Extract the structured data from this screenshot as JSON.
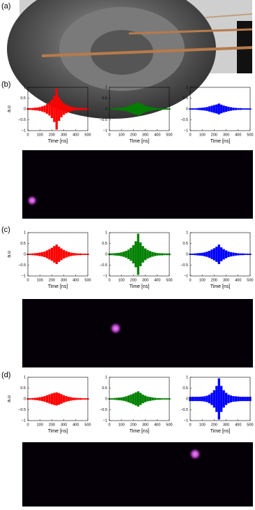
{
  "panels": [
    "(a)",
    "(b)",
    "(c)",
    "(d)"
  ],
  "chart_data": [
    {
      "type": "area",
      "color": "#ff0000",
      "xlabel": "Time [ns]",
      "ylabel": "a.u",
      "xlim": [
        0,
        500
      ],
      "xticks": [
        0,
        100,
        200,
        300,
        400,
        500
      ],
      "ylim": [
        -1,
        1
      ],
      "yticks": [
        {
          "value": -1,
          "label": "−1"
        },
        {
          "value": -0.5,
          "label": "−0.5"
        },
        0,
        0.5,
        1
      ],
      "x": [
        0,
        20,
        40,
        60,
        80,
        100,
        120,
        140,
        160,
        180,
        200,
        220,
        240,
        260,
        280,
        300,
        320,
        340,
        360,
        380,
        400,
        420,
        440,
        460,
        480,
        500
      ],
      "values": [
        0.04,
        0.04,
        0.05,
        0.06,
        0.07,
        0.09,
        0.12,
        0.16,
        0.22,
        0.3,
        0.42,
        0.6,
        0.95,
        0.55,
        0.38,
        0.27,
        0.2,
        0.15,
        0.11,
        0.08,
        0.06,
        0.05,
        0.05,
        0.04,
        0.04,
        0.04
      ]
    },
    {
      "type": "area",
      "color": "#008000",
      "xlabel": "Time [ns]",
      "xlim": [
        0,
        500
      ],
      "xticks": [
        0,
        100,
        200,
        300,
        400,
        500
      ],
      "ylim": [
        -1,
        1
      ],
      "yticks": [
        {
          "value": -1,
          "label": "−1"
        },
        {
          "value": -0.5,
          "label": "−0.5"
        },
        0,
        0.5,
        1
      ],
      "x": [
        0,
        20,
        40,
        60,
        80,
        100,
        120,
        140,
        160,
        180,
        200,
        220,
        240,
        260,
        280,
        300,
        320,
        340,
        360,
        380,
        400,
        420,
        440,
        460,
        480,
        500
      ],
      "values": [
        0.03,
        0.03,
        0.03,
        0.04,
        0.05,
        0.06,
        0.08,
        0.1,
        0.14,
        0.18,
        0.22,
        0.26,
        0.3,
        0.26,
        0.2,
        0.15,
        0.12,
        0.09,
        0.07,
        0.05,
        0.04,
        0.04,
        0.03,
        0.03,
        0.03,
        0.03
      ]
    },
    {
      "type": "area",
      "color": "#0000ff",
      "xlabel": "Time [ns]",
      "xlim": [
        0,
        500
      ],
      "xticks": [
        0,
        100,
        200,
        300,
        400,
        500
      ],
      "ylim": [
        -1,
        1
      ],
      "yticks": [
        {
          "value": -1,
          "label": "−1"
        },
        {
          "value": -0.5,
          "label": "−0.5"
        },
        0,
        0.5,
        1
      ],
      "x": [
        0,
        20,
        40,
        60,
        80,
        100,
        120,
        140,
        160,
        180,
        200,
        220,
        240,
        260,
        280,
        300,
        320,
        340,
        360,
        380,
        400,
        420,
        440,
        460,
        480,
        500
      ],
      "values": [
        0.03,
        0.03,
        0.03,
        0.04,
        0.05,
        0.06,
        0.07,
        0.09,
        0.12,
        0.15,
        0.18,
        0.21,
        0.25,
        0.2,
        0.16,
        0.13,
        0.1,
        0.08,
        0.06,
        0.05,
        0.04,
        0.04,
        0.03,
        0.03,
        0.03,
        0.03
      ]
    },
    {
      "type": "area",
      "color": "#ff0000",
      "xlabel": "Time [ns]",
      "ylabel": "a.u",
      "xlim": [
        0,
        500
      ],
      "xticks": [
        0,
        100,
        200,
        300,
        400,
        500
      ],
      "ylim": [
        -1,
        1
      ],
      "yticks": [
        {
          "value": -1,
          "label": "−1"
        },
        {
          "value": -0.5,
          "label": "−0.5"
        },
        0,
        0.5,
        1
      ],
      "x": [
        0,
        20,
        40,
        60,
        80,
        100,
        120,
        140,
        160,
        180,
        200,
        220,
        240,
        260,
        280,
        300,
        320,
        340,
        360,
        380,
        400,
        420,
        440,
        460,
        480,
        500
      ],
      "values": [
        0.03,
        0.03,
        0.04,
        0.05,
        0.06,
        0.08,
        0.1,
        0.13,
        0.18,
        0.24,
        0.3,
        0.38,
        0.45,
        0.35,
        0.27,
        0.2,
        0.15,
        0.11,
        0.08,
        0.06,
        0.05,
        0.04,
        0.04,
        0.03,
        0.03,
        0.03
      ]
    },
    {
      "type": "area",
      "color": "#008000",
      "xlabel": "Time [ns]",
      "xlim": [
        0,
        500
      ],
      "xticks": [
        0,
        100,
        200,
        300,
        400,
        500
      ],
      "ylim": [
        -1,
        1
      ],
      "yticks": [
        {
          "value": -1,
          "label": "−1"
        },
        {
          "value": -0.5,
          "label": "−0.5"
        },
        0,
        0.5,
        1
      ],
      "x": [
        0,
        20,
        40,
        60,
        80,
        100,
        120,
        140,
        160,
        180,
        200,
        220,
        240,
        260,
        280,
        300,
        320,
        340,
        360,
        380,
        400,
        420,
        440,
        460,
        480,
        500
      ],
      "values": [
        0.04,
        0.04,
        0.05,
        0.06,
        0.07,
        0.09,
        0.12,
        0.16,
        0.22,
        0.3,
        0.42,
        0.6,
        0.95,
        0.55,
        0.38,
        0.27,
        0.2,
        0.15,
        0.11,
        0.08,
        0.06,
        0.05,
        0.05,
        0.04,
        0.04,
        0.04
      ]
    },
    {
      "type": "area",
      "color": "#0000ff",
      "xlabel": "Time [ns]",
      "xlim": [
        0,
        500
      ],
      "xticks": [
        0,
        100,
        200,
        300,
        400,
        500
      ],
      "ylim": [
        -1,
        1
      ],
      "yticks": [
        {
          "value": -1,
          "label": "−1"
        },
        {
          "value": -0.5,
          "label": "−0.5"
        },
        0,
        0.5,
        1
      ],
      "x": [
        0,
        20,
        40,
        60,
        80,
        100,
        120,
        140,
        160,
        180,
        200,
        220,
        240,
        260,
        280,
        300,
        320,
        340,
        360,
        380,
        400,
        420,
        440,
        460,
        480,
        500
      ],
      "values": [
        0.03,
        0.03,
        0.04,
        0.05,
        0.06,
        0.07,
        0.09,
        0.12,
        0.16,
        0.22,
        0.28,
        0.35,
        0.45,
        0.32,
        0.24,
        0.18,
        0.13,
        0.1,
        0.08,
        0.06,
        0.05,
        0.04,
        0.04,
        0.03,
        0.03,
        0.03
      ]
    },
    {
      "type": "area",
      "color": "#ff0000",
      "xlabel": "Time [ns]",
      "ylabel": "a.u",
      "xlim": [
        0,
        500
      ],
      "xticks": [
        0,
        100,
        200,
        300,
        400,
        500
      ],
      "ylim": [
        -1,
        1
      ],
      "yticks": [
        {
          "value": -1,
          "label": "−1"
        },
        {
          "value": -0.5,
          "label": "−0.5"
        },
        0,
        0.5,
        1
      ],
      "x": [
        0,
        20,
        40,
        60,
        80,
        100,
        120,
        140,
        160,
        180,
        200,
        220,
        240,
        260,
        280,
        300,
        320,
        340,
        360,
        380,
        400,
        420,
        440,
        460,
        480,
        500
      ],
      "values": [
        0.03,
        0.03,
        0.04,
        0.05,
        0.06,
        0.08,
        0.1,
        0.13,
        0.17,
        0.21,
        0.25,
        0.28,
        0.3,
        0.27,
        0.22,
        0.17,
        0.13,
        0.1,
        0.08,
        0.06,
        0.05,
        0.04,
        0.04,
        0.03,
        0.03,
        0.03
      ]
    },
    {
      "type": "area",
      "color": "#008000",
      "xlabel": "Time [ns]",
      "xlim": [
        0,
        500
      ],
      "xticks": [
        0,
        100,
        200,
        300,
        400,
        500
      ],
      "ylim": [
        -1,
        1
      ],
      "yticks": [
        {
          "value": -1,
          "label": "−1"
        },
        {
          "value": -0.5,
          "label": "−0.5"
        },
        0,
        0.5,
        1
      ],
      "x": [
        0,
        20,
        40,
        60,
        80,
        100,
        120,
        140,
        160,
        180,
        200,
        220,
        240,
        260,
        280,
        300,
        320,
        340,
        360,
        380,
        400,
        420,
        440,
        460,
        480,
        500
      ],
      "values": [
        0.03,
        0.03,
        0.04,
        0.05,
        0.06,
        0.07,
        0.09,
        0.12,
        0.16,
        0.2,
        0.25,
        0.3,
        0.35,
        0.28,
        0.2,
        0.15,
        0.11,
        0.09,
        0.07,
        0.05,
        0.04,
        0.04,
        0.03,
        0.03,
        0.03,
        0.03
      ]
    },
    {
      "type": "area",
      "color": "#0000ff",
      "xlabel": "Time [ns]",
      "xlim": [
        0,
        500
      ],
      "xticks": [
        0,
        100,
        200,
        300,
        400,
        500
      ],
      "ylim": [
        -1,
        1
      ],
      "yticks": [
        {
          "value": -1,
          "label": "−1"
        },
        {
          "value": -0.5,
          "label": "−0.5"
        },
        0,
        0.5,
        1
      ],
      "x": [
        0,
        20,
        40,
        60,
        80,
        100,
        120,
        140,
        160,
        180,
        200,
        220,
        240,
        260,
        280,
        300,
        320,
        340,
        360,
        380,
        400,
        420,
        440,
        460,
        480,
        500
      ],
      "values": [
        0.1,
        0.1,
        0.1,
        0.1,
        0.1,
        0.11,
        0.12,
        0.15,
        0.2,
        0.28,
        0.4,
        0.6,
        0.95,
        0.6,
        0.4,
        0.28,
        0.2,
        0.16,
        0.13,
        0.12,
        0.11,
        0.1,
        0.1,
        0.1,
        0.1,
        0.1
      ]
    }
  ]
}
